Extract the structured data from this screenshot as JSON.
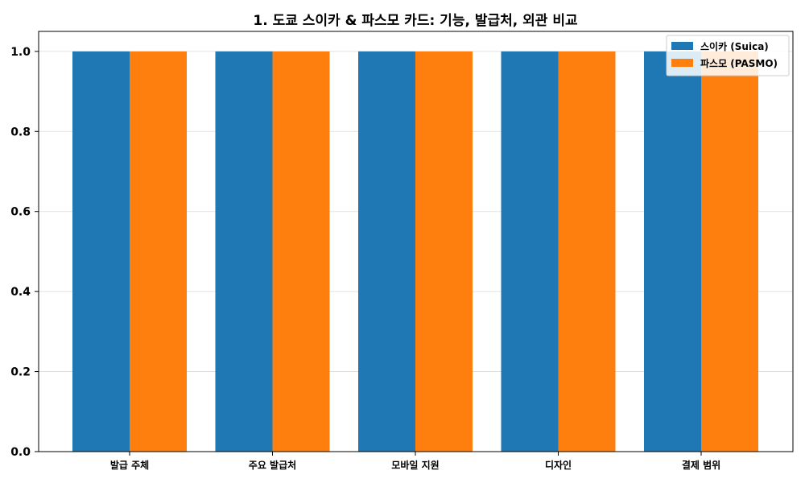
{
  "chart_data": {
    "type": "bar",
    "title": "1. 도쿄 스이카 & 파스모 카드: 기능, 발급처, 외관 비교",
    "xlabel": "",
    "ylabel": "",
    "categories": [
      "발급 주체",
      "주요 발급처",
      "모바일 지원",
      "디자인",
      "결제 범위"
    ],
    "series": [
      {
        "name": "스이카 (Suica)",
        "values": [
          1.0,
          1.0,
          1.0,
          1.0,
          1.0
        ],
        "color": "#1f77b4"
      },
      {
        "name": "파스모 (PASMO)",
        "values": [
          1.0,
          1.0,
          1.0,
          1.0,
          1.0
        ],
        "color": "#ff7f0e"
      }
    ],
    "ylim": [
      0,
      1.05
    ],
    "yticks": [
      "0.0",
      "0.2",
      "0.4",
      "0.6",
      "0.8",
      "1.0"
    ],
    "grid": "horizontal",
    "legend_position": "top-right"
  }
}
